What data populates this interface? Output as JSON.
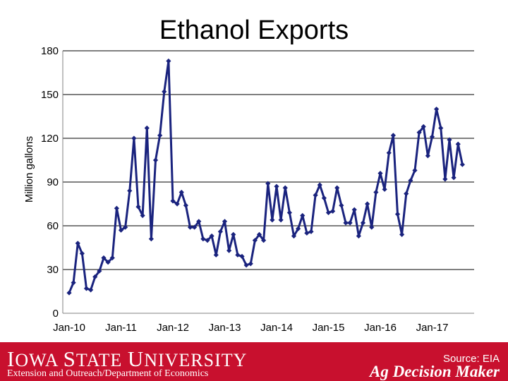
{
  "chart_data": {
    "type": "line",
    "title": "Ethanol Exports",
    "ylabel": "Million gallons",
    "xlabel": "",
    "ylim": [
      0,
      180
    ],
    "yticks": [
      "0",
      "30",
      "60",
      "90",
      "120",
      "150",
      "180"
    ],
    "xtick_labels": [
      "Jan-10",
      "Jan-11",
      "Jan-12",
      "Jan-13",
      "Jan-14",
      "Jan-15",
      "Jan-16",
      "Jan-17"
    ],
    "grid": true,
    "series_color": "#1a237e",
    "series": [
      {
        "values": [
          14,
          21,
          48,
          41,
          17,
          16,
          25,
          29,
          38,
          35,
          38,
          72,
          57,
          59,
          84,
          120,
          73,
          67,
          127,
          51,
          105,
          122,
          152,
          173,
          77,
          75,
          83,
          74,
          59,
          59,
          63,
          51,
          50,
          53,
          40,
          56,
          63,
          43,
          54,
          40,
          39,
          33,
          34,
          50,
          54,
          50,
          89,
          64,
          87,
          64,
          86,
          69,
          53,
          58,
          67,
          55,
          56,
          81,
          88,
          79,
          69,
          70,
          86,
          74,
          62,
          62,
          71,
          53,
          62,
          75,
          59,
          83,
          96,
          85,
          110,
          122,
          68,
          54,
          82,
          91,
          98,
          124,
          128,
          108,
          121,
          140,
          127,
          92,
          119,
          93,
          116,
          102
        ]
      }
    ]
  },
  "footer": {
    "university_first_big": "I",
    "university_rest_1": "OWA ",
    "university_second_big": "S",
    "university_rest_2": "TATE ",
    "university_third_big": "U",
    "university_rest_3": "NIVERSITY",
    "extension_line": "Extension and Outreach/Department of Economics",
    "source": "Source: EIA",
    "brand": "Ag Decision Maker"
  },
  "colors": {
    "footer_bg": "#c8102e",
    "line": "#1a237e",
    "grid": "#000000"
  }
}
